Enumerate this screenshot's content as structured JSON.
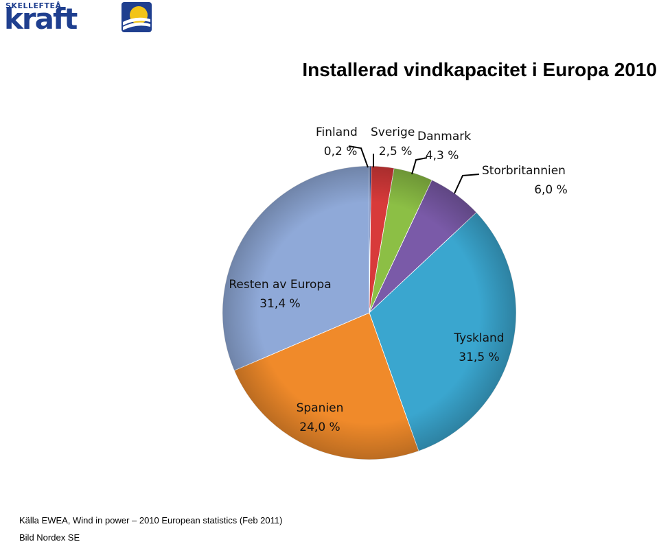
{
  "logo": {
    "top_text": "SKELLEFTEÅ",
    "word": "kraft",
    "color": "#1f3f8f",
    "sun_color": "#f2c418"
  },
  "title": "Installerad vindkapacitet i Europa 2010",
  "source": "Källa EWEA, Wind in power – 2010 European statistics (Feb 2011)",
  "credit": "Bild Nordex SE",
  "chart_data": {
    "type": "pie",
    "title": "Installerad vindkapacitet i Europa 2010",
    "slices": [
      {
        "label": "Finland",
        "value_label": "0,2 %",
        "value": 0.2,
        "color": "#1f3f8f"
      },
      {
        "label": "Sverige",
        "value_label": "2,5 %",
        "value": 2.5,
        "color": "#d83a3a"
      },
      {
        "label": "Danmark",
        "value_label": "4,3 %",
        "value": 4.3,
        "color": "#8cbf45"
      },
      {
        "label": "Storbritannien",
        "value_label": "6,0 %",
        "value": 6.0,
        "color": "#7a5aa8"
      },
      {
        "label": "Tyskland",
        "value_label": "31,5 %",
        "value": 31.5,
        "color": "#3aa6cf"
      },
      {
        "label": "Spanien",
        "value_label": "24,0 %",
        "value": 24.0,
        "color": "#f08a2a"
      },
      {
        "label": "Resten av Europa",
        "value_label": "31,4 %",
        "value": 31.4,
        "color": "#8fa9d8"
      }
    ]
  }
}
